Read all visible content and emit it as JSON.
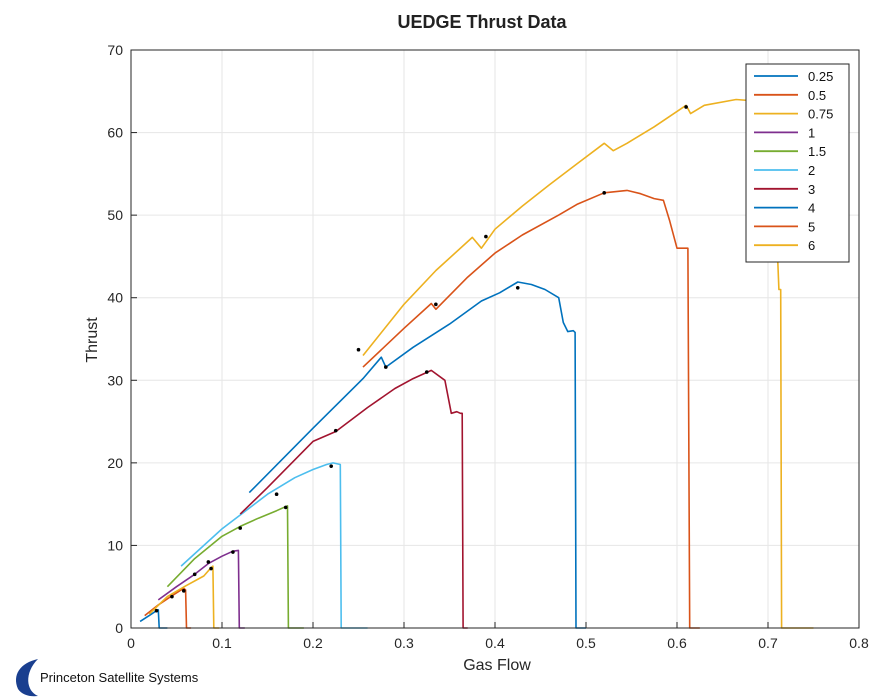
{
  "chart_data": {
    "type": "line",
    "title": "UEDGE Thrust Data",
    "xlabel": "Gas Flow",
    "ylabel": "Thrust",
    "xlim": [
      0,
      0.8
    ],
    "ylim": [
      0,
      70
    ],
    "xticks": [
      0,
      0.1,
      0.2,
      0.3,
      0.4,
      0.5,
      0.6,
      0.7,
      0.8
    ],
    "xtick_labels": [
      "0",
      "0.1",
      "0.2",
      "0.3",
      "0.4",
      "0.5",
      "0.6",
      "0.7",
      "0.8"
    ],
    "yticks": [
      0,
      10,
      20,
      30,
      40,
      50,
      60,
      70
    ],
    "ytick_labels": [
      "0",
      "10",
      "20",
      "30",
      "40",
      "50",
      "60",
      "70"
    ],
    "grid": true,
    "legend_position": "top-right",
    "series": [
      {
        "name": "0.25",
        "color": "#0072BD",
        "x": [
          0.01,
          0.02,
          0.028,
          0.03,
          0.031,
          0.036,
          0.04
        ],
        "y": [
          0.8,
          1.5,
          2.1,
          2.2,
          0,
          0,
          0
        ]
      },
      {
        "name": "0.5",
        "color": "#D95319",
        "x": [
          0.015,
          0.03,
          0.045,
          0.055,
          0.058,
          0.06,
          0.061,
          0.066
        ],
        "y": [
          1.5,
          2.8,
          3.9,
          4.6,
          4.8,
          4.6,
          0,
          0
        ]
      },
      {
        "name": "0.75",
        "color": "#EDB120",
        "x": [
          0.02,
          0.04,
          0.06,
          0.08,
          0.088,
          0.09,
          0.091,
          0.097
        ],
        "y": [
          1.7,
          3.8,
          5.1,
          6.3,
          7.3,
          7.5,
          0,
          0
        ]
      },
      {
        "name": "1",
        "color": "#7E2F8E",
        "x": [
          0.03,
          0.05,
          0.07,
          0.085,
          0.1,
          0.112,
          0.118,
          0.119,
          0.125
        ],
        "y": [
          3.4,
          5.0,
          6.5,
          7.8,
          8.7,
          9.3,
          9.4,
          0,
          0
        ]
      },
      {
        "name": "1.5",
        "color": "#77AC30",
        "x": [
          0.04,
          0.07,
          0.1,
          0.12,
          0.14,
          0.16,
          0.172,
          0.173,
          0.19
        ],
        "y": [
          5.0,
          8.4,
          11.1,
          12.3,
          13.3,
          14.2,
          14.8,
          0,
          0
        ]
      },
      {
        "name": "2",
        "color": "#4DBEEE",
        "x": [
          0.055,
          0.1,
          0.15,
          0.18,
          0.2,
          0.215,
          0.222,
          0.23,
          0.231,
          0.26
        ],
        "y": [
          7.5,
          12.0,
          16.2,
          18.2,
          19.2,
          19.8,
          20.0,
          19.8,
          0,
          0
        ]
      },
      {
        "name": "3",
        "color": "#A2142F",
        "x": [
          0.12,
          0.15,
          0.2,
          0.225,
          0.26,
          0.29,
          0.31,
          0.33,
          0.345,
          0.352,
          0.358,
          0.362,
          0.364,
          0.365,
          0.37
        ],
        "y": [
          13.8,
          17.0,
          22.6,
          23.8,
          26.7,
          29.0,
          30.2,
          31.2,
          30.0,
          26.0,
          26.2,
          26.0,
          26.0,
          0,
          0
        ]
      },
      {
        "name": "4",
        "color": "#0072BD",
        "x": [
          0.13,
          0.2,
          0.255,
          0.275,
          0.28,
          0.31,
          0.35,
          0.385,
          0.405,
          0.425,
          0.44,
          0.455,
          0.47,
          0.475,
          0.48,
          0.486,
          0.488,
          0.489,
          0.5
        ],
        "y": [
          16.4,
          24.2,
          30.2,
          32.8,
          31.6,
          34.0,
          36.8,
          39.6,
          40.6,
          41.9,
          41.6,
          41.0,
          40.0,
          37.0,
          35.9,
          36.0,
          35.8,
          0,
          0
        ]
      },
      {
        "name": "5",
        "color": "#D95319",
        "x": [
          0.255,
          0.3,
          0.33,
          0.335,
          0.37,
          0.4,
          0.43,
          0.47,
          0.49,
          0.52,
          0.545,
          0.56,
          0.575,
          0.585,
          0.592,
          0.6,
          0.612,
          0.614,
          0.625
        ],
        "y": [
          31.6,
          36.3,
          39.3,
          38.6,
          42.5,
          45.4,
          47.6,
          50.0,
          51.3,
          52.7,
          53.0,
          52.6,
          52.0,
          51.8,
          49.3,
          46.0,
          46.0,
          0,
          0
        ]
      },
      {
        "name": "6",
        "color": "#EDB120",
        "x": [
          0.255,
          0.3,
          0.335,
          0.375,
          0.385,
          0.4,
          0.43,
          0.46,
          0.49,
          0.52,
          0.53,
          0.545,
          0.575,
          0.61,
          0.615,
          0.63,
          0.665,
          0.7,
          0.708,
          0.712,
          0.714,
          0.715,
          0.75
        ],
        "y": [
          33.0,
          39.2,
          43.3,
          47.3,
          46.0,
          48.3,
          51.1,
          53.7,
          56.2,
          58.7,
          57.8,
          58.7,
          60.7,
          63.3,
          62.3,
          63.3,
          64.0,
          63.7,
          52.0,
          41.0,
          41.0,
          0,
          0
        ]
      }
    ],
    "markers": [
      {
        "x": 0.028,
        "y": 2.1
      },
      {
        "x": 0.045,
        "y": 3.8
      },
      {
        "x": 0.058,
        "y": 4.5
      },
      {
        "x": 0.07,
        "y": 6.5
      },
      {
        "x": 0.088,
        "y": 7.2
      },
      {
        "x": 0.085,
        "y": 8.0
      },
      {
        "x": 0.112,
        "y": 9.2
      },
      {
        "x": 0.12,
        "y": 12.1
      },
      {
        "x": 0.17,
        "y": 14.6
      },
      {
        "x": 0.16,
        "y": 16.2
      },
      {
        "x": 0.22,
        "y": 19.6
      },
      {
        "x": 0.225,
        "y": 23.9
      },
      {
        "x": 0.325,
        "y": 31.0
      },
      {
        "x": 0.28,
        "y": 31.6
      },
      {
        "x": 0.425,
        "y": 41.2
      },
      {
        "x": 0.335,
        "y": 39.2
      },
      {
        "x": 0.52,
        "y": 52.7
      },
      {
        "x": 0.25,
        "y": 33.7
      },
      {
        "x": 0.39,
        "y": 47.4
      },
      {
        "x": 0.61,
        "y": 63.1
      }
    ]
  },
  "logo": {
    "text": "Princeton Satellite Systems"
  }
}
